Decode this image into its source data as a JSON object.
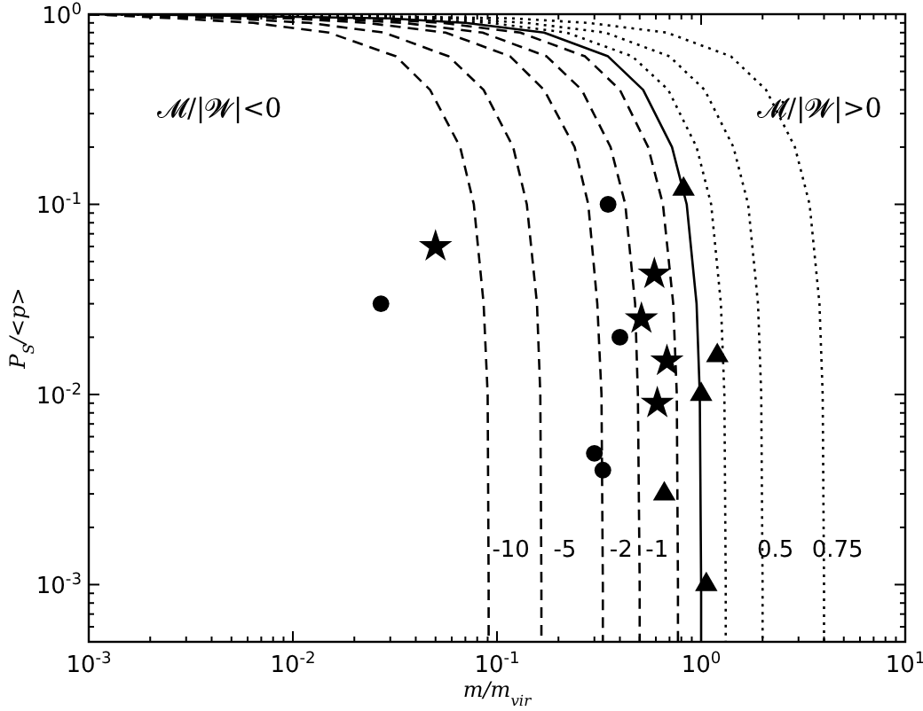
{
  "chart_data": {
    "type": "line",
    "xlabel": "m/m$_{vir}$",
    "ylabel": "P$_{S}$/<p>",
    "log": "xy",
    "grid": false,
    "xlim": [
      0.001,
      10
    ],
    "ylim": [
      0.0005,
      1
    ],
    "xticks": [
      {
        "value": 0.001,
        "label": "10$^{-3}$"
      },
      {
        "value": 0.002,
        "label": null
      },
      {
        "value": 0.003,
        "label": null
      },
      {
        "value": 0.004,
        "label": null
      },
      {
        "value": 0.005,
        "label": null
      },
      {
        "value": 0.006,
        "label": null
      },
      {
        "value": 0.007,
        "label": null
      },
      {
        "value": 0.008,
        "label": null
      },
      {
        "value": 0.009,
        "label": null
      },
      {
        "value": 0.01,
        "label": "10$^{-2}$"
      },
      {
        "value": 0.02,
        "label": null
      },
      {
        "value": 0.03,
        "label": null
      },
      {
        "value": 0.04,
        "label": null
      },
      {
        "value": 0.05,
        "label": null
      },
      {
        "value": 0.06,
        "label": null
      },
      {
        "value": 0.07,
        "label": null
      },
      {
        "value": 0.08,
        "label": null
      },
      {
        "value": 0.09,
        "label": null
      },
      {
        "value": 0.1,
        "label": "10$^{-1}$"
      },
      {
        "value": 0.2,
        "label": null
      },
      {
        "value": 0.3,
        "label": null
      },
      {
        "value": 0.4,
        "label": null
      },
      {
        "value": 0.5,
        "label": null
      },
      {
        "value": 0.6,
        "label": null
      },
      {
        "value": 0.7,
        "label": null
      },
      {
        "value": 0.8,
        "label": null
      },
      {
        "value": 0.9,
        "label": null
      },
      {
        "value": 1,
        "label": "10$^{0}$"
      },
      {
        "value": 2,
        "label": null
      },
      {
        "value": 3,
        "label": null
      },
      {
        "value": 4,
        "label": null
      },
      {
        "value": 5,
        "label": null
      },
      {
        "value": 6,
        "label": null
      },
      {
        "value": 7,
        "label": null
      },
      {
        "value": 8,
        "label": null
      },
      {
        "value": 9,
        "label": null
      },
      {
        "value": 10,
        "label": "10$^{1}$"
      }
    ],
    "yticks": [
      {
        "value": 0.0006,
        "label": null
      },
      {
        "value": 0.0007,
        "label": null
      },
      {
        "value": 0.0008,
        "label": null
      },
      {
        "value": 0.0009,
        "label": null
      },
      {
        "value": 0.001,
        "label": "10$^{-3}$"
      },
      {
        "value": 0.002,
        "label": null
      },
      {
        "value": 0.003,
        "label": null
      },
      {
        "value": 0.004,
        "label": null
      },
      {
        "value": 0.005,
        "label": null
      },
      {
        "value": 0.006,
        "label": null
      },
      {
        "value": 0.007,
        "label": null
      },
      {
        "value": 0.008,
        "label": null
      },
      {
        "value": 0.009,
        "label": null
      },
      {
        "value": 0.01,
        "label": "10$^{-2}$"
      },
      {
        "value": 0.02,
        "label": null
      },
      {
        "value": 0.03,
        "label": null
      },
      {
        "value": 0.04,
        "label": null
      },
      {
        "value": 0.05,
        "label": null
      },
      {
        "value": 0.06,
        "label": null
      },
      {
        "value": 0.07,
        "label": null
      },
      {
        "value": 0.08,
        "label": null
      },
      {
        "value": 0.09,
        "label": null
      },
      {
        "value": 0.1,
        "label": "10$^{-1}$"
      },
      {
        "value": 0.2,
        "label": null
      },
      {
        "value": 0.3,
        "label": null
      },
      {
        "value": 0.4,
        "label": null
      },
      {
        "value": 0.5,
        "label": null
      },
      {
        "value": 0.6,
        "label": null
      },
      {
        "value": 0.7,
        "label": null
      },
      {
        "value": 0.8,
        "label": null
      },
      {
        "value": 0.9,
        "label": null
      },
      {
        "value": 1,
        "label": "10$^{0}$"
      }
    ],
    "series": [
      {
        "line_style": "dashed",
        "color": "#000000",
        "x": [
          0.001,
          0.0027,
          0.0064,
          0.015,
          0.032,
          0.047,
          0.066,
          0.077,
          0.086,
          0.09,
          0.091,
          0.091
        ],
        "values": [
          1,
          0.95,
          0.9,
          0.8,
          0.6,
          0.4,
          0.2,
          0.1,
          0.03,
          0.01,
          0.001,
          0.0005
        ]
      },
      {
        "type": "line",
        "line_style": "dashed",
        "color": "#000000",
        "x": [
          0.001,
          0.005,
          0.012,
          0.028,
          0.058,
          0.086,
          0.12,
          0.14,
          0.157,
          0.163,
          0.165,
          0.165
        ],
        "values": [
          1,
          0.95,
          0.9,
          0.8,
          0.6,
          0.4,
          0.2,
          0.1,
          0.03,
          0.01,
          0.001,
          0.0005
        ]
      },
      {
        "type": "line",
        "line_style": "dashed",
        "color": "#000000",
        "x": [
          0.001,
          0.0099,
          0.023,
          0.056,
          0.116,
          0.17,
          0.24,
          0.28,
          0.31,
          0.325,
          0.33,
          0.33
        ],
        "values": [
          1,
          0.95,
          0.9,
          0.8,
          0.6,
          0.4,
          0.2,
          0.1,
          0.03,
          0.01,
          0.001,
          0.0005
        ]
      },
      {
        "type": "line",
        "line_style": "dashed",
        "color": "#000000",
        "x": [
          0.001,
          0.0015,
          0.015,
          0.035,
          0.085,
          0.175,
          0.26,
          0.36,
          0.425,
          0.475,
          0.49,
          0.5,
          0.5
        ],
        "values": [
          1,
          0.99,
          0.95,
          0.9,
          0.8,
          0.6,
          0.4,
          0.2,
          0.1,
          0.03,
          0.01,
          0.001,
          0.0005
        ]
      },
      {
        "type": "line",
        "line_style": "dashed",
        "color": "#000000",
        "x": [
          0.001,
          0.0023,
          0.023,
          0.054,
          0.13,
          0.27,
          0.4,
          0.55,
          0.65,
          0.73,
          0.76,
          0.77,
          0.77
        ],
        "values": [
          1,
          0.99,
          0.95,
          0.9,
          0.8,
          0.6,
          0.4,
          0.2,
          0.1,
          0.03,
          0.01,
          0.001,
          0.0005
        ]
      },
      {
        "type": "line",
        "line_style": "solid",
        "color": "#000000",
        "x": [
          0.001,
          0.003,
          0.03,
          0.07,
          0.17,
          0.35,
          0.52,
          0.72,
          0.85,
          0.95,
          0.985,
          1,
          1
        ],
        "values": [
          1,
          0.99,
          0.95,
          0.9,
          0.8,
          0.6,
          0.4,
          0.2,
          0.1,
          0.03,
          0.01,
          0.001,
          0.0005
        ]
      },
      {
        "type": "line",
        "line_style": "dotted",
        "color": "#000000",
        "x": [
          0.001,
          0.004,
          0.04,
          0.092,
          0.22,
          0.46,
          0.69,
          0.95,
          1.12,
          1.25,
          1.3,
          1.32,
          1.32
        ],
        "values": [
          1,
          0.99,
          0.95,
          0.9,
          0.8,
          0.6,
          0.4,
          0.2,
          0.1,
          0.03,
          0.01,
          0.001,
          0.0005
        ]
      },
      {
        "type": "line",
        "line_style": "dotted",
        "color": "#000000",
        "x": [
          0.001,
          0.006,
          0.06,
          0.14,
          0.34,
          0.7,
          1.04,
          1.44,
          1.7,
          1.9,
          1.97,
          2,
          2
        ],
        "values": [
          1,
          0.99,
          0.95,
          0.9,
          0.8,
          0.6,
          0.4,
          0.2,
          0.1,
          0.03,
          0.01,
          0.001,
          0.0005
        ]
      },
      {
        "type": "line",
        "line_style": "dotted",
        "color": "#000000",
        "x": [
          0.001,
          0.012,
          0.12,
          0.28,
          0.68,
          1.4,
          2.08,
          2.88,
          3.4,
          3.8,
          3.94,
          4,
          4
        ],
        "values": [
          1,
          0.99,
          0.95,
          0.9,
          0.8,
          0.6,
          0.4,
          0.2,
          0.1,
          0.03,
          0.01,
          0.001,
          0.0005
        ]
      },
      {
        "type": "scatter",
        "marker": "circle",
        "color": "#000000",
        "x": [
          0.027,
          0.35,
          0.4,
          0.3,
          0.33
        ],
        "values": [
          0.03,
          0.1,
          0.02,
          0.0049,
          0.004
        ]
      },
      {
        "type": "scatter",
        "marker": "star",
        "color": "#000000",
        "x": [
          0.05,
          0.59,
          0.51,
          0.68,
          0.61
        ],
        "values": [
          0.06,
          0.043,
          0.025,
          0.015,
          0.009
        ]
      },
      {
        "type": "scatter",
        "marker": "triangle",
        "color": "#000000",
        "x": [
          0.82,
          1.2,
          1,
          0.66,
          1.06
        ],
        "values": [
          0.12,
          0.016,
          0.01,
          0.003,
          0.001
        ]
      }
    ],
    "annotations": [
      "𝓜/|𝓦|<0",
      "𝓜̇/|𝓦|>0",
      "-10",
      "-5",
      "-2",
      "-1",
      "0.5",
      "0.75"
    ]
  }
}
